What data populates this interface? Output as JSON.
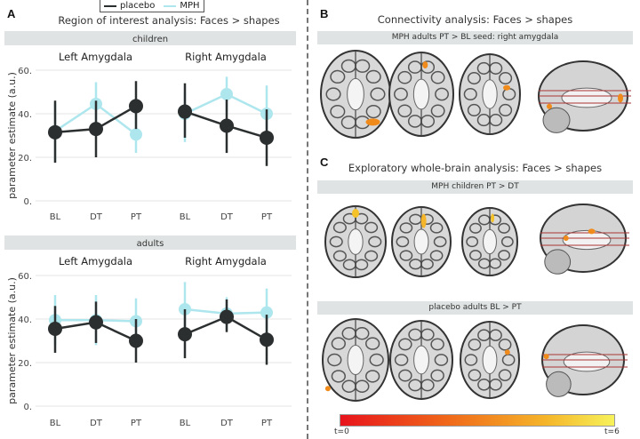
{
  "legend": {
    "items": [
      {
        "label": "placebo",
        "color": "#2b2f2f"
      },
      {
        "label": "MPH",
        "color": "#aee6ee"
      }
    ]
  },
  "panel_a": {
    "label": "A",
    "title": "Region of interest analysis: Faces > shapes",
    "ylabel": "parameter estimate (a.u.)"
  },
  "panel_b": {
    "label": "B",
    "title": "Connectivity analysis: Faces > shapes",
    "strip": "MPH adults PT > BL  seed: right amygdala"
  },
  "panel_c": {
    "label": "C",
    "title": "Exploratory whole-brain analysis: Faces > shapes",
    "strip1": "MPH children PT > DT",
    "strip2": "placebo adults BL > PT"
  },
  "colorbar": {
    "min_label": "t=0",
    "max_label": "t=6"
  },
  "chart_data": [
    {
      "type": "line",
      "group": "children",
      "facets": [
        {
          "title": "Left Amygdala",
          "categories": [
            "BL",
            "DT",
            "PT"
          ],
          "series": [
            {
              "name": "placebo",
              "values": [
                31.5,
                33,
                43.5
              ],
              "lo": [
                17.5,
                20,
                33
              ],
              "hi": [
                46,
                46,
                55
              ]
            },
            {
              "name": "MPH",
              "values": [
                32,
                44.5,
                30.5
              ],
              "lo": [
                18,
                35,
                22
              ],
              "hi": [
                45,
                54.5,
                44
              ]
            }
          ]
        },
        {
          "title": "Right Amygdala",
          "categories": [
            "BL",
            "DT",
            "PT"
          ],
          "series": [
            {
              "name": "placebo",
              "values": [
                41,
                34.5,
                29
              ],
              "lo": [
                29,
                22,
                16
              ],
              "hi": [
                54,
                46.5,
                42
              ]
            },
            {
              "name": "MPH",
              "values": [
                40,
                49,
                40
              ],
              "lo": [
                27,
                41,
                29
              ],
              "hi": [
                50,
                57,
                53
              ]
            }
          ]
        }
      ],
      "ylim": [
        0,
        60
      ],
      "yticks": [
        "0",
        "20",
        "40",
        "60"
      ],
      "ylabel": "parameter estimate (a.u.)"
    },
    {
      "type": "line",
      "group": "adults",
      "facets": [
        {
          "title": "Left Amygdala",
          "categories": [
            "BL",
            "DT",
            "PT"
          ],
          "series": [
            {
              "name": "placebo",
              "values": [
                35.5,
                38.5,
                30
              ],
              "lo": [
                24.5,
                29,
                20
              ],
              "hi": [
                46,
                48,
                40
              ]
            },
            {
              "name": "MPH",
              "values": [
                39.5,
                39.5,
                39
              ],
              "lo": [
                28,
                28,
                27
              ],
              "hi": [
                51,
                51,
                49.5
              ]
            }
          ]
        },
        {
          "title": "Right Amygdala",
          "categories": [
            "BL",
            "DT",
            "PT"
          ],
          "series": [
            {
              "name": "placebo",
              "values": [
                33,
                41,
                30.5
              ],
              "lo": [
                22,
                34,
                19
              ],
              "hi": [
                44.5,
                49,
                42
              ]
            },
            {
              "name": "MPH",
              "values": [
                44.5,
                42.5,
                43
              ],
              "lo": [
                33,
                35,
                31
              ],
              "hi": [
                57,
                50,
                54
              ]
            }
          ]
        }
      ],
      "ylim": [
        0,
        60
      ],
      "yticks": [
        "0",
        "20",
        "40",
        "60"
      ],
      "ylabel": "parameter estimate (a.u.)"
    }
  ]
}
